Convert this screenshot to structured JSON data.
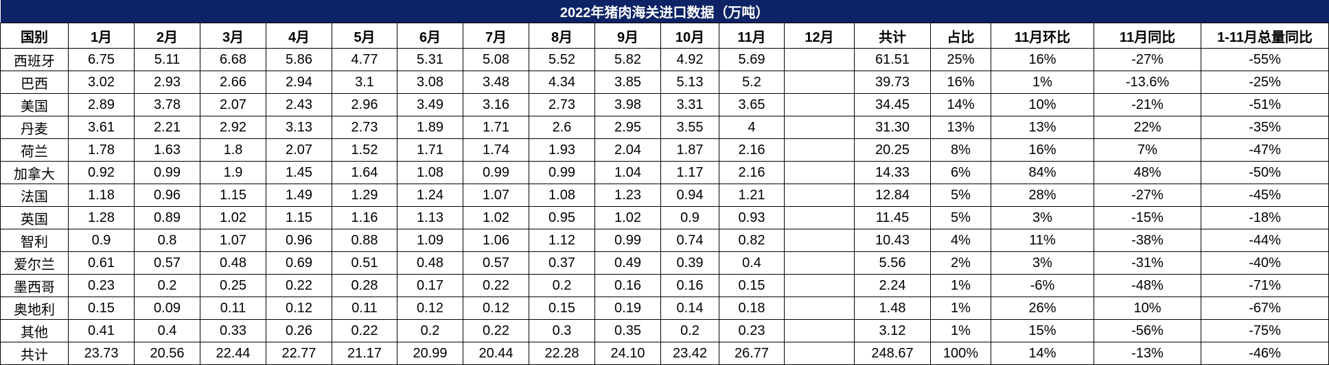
{
  "title": "2022年猪肉海关进口数据（万吨）",
  "colors": {
    "title_bg": "#0D2365",
    "title_text": "#FFFFFF",
    "grid_border": "#000000",
    "cell_bg": "#FFFFFF",
    "cell_text": "#000000"
  },
  "chart_data": {
    "type": "table",
    "title": "2022年猪肉海关进口数据（万吨）",
    "columns": [
      "国别",
      "1月",
      "2月",
      "3月",
      "4月",
      "5月",
      "6月",
      "7月",
      "8月",
      "9月",
      "10月",
      "11月",
      "12月",
      "共计",
      "占比",
      "11月环比",
      "11月同比",
      "1-11月总量同比"
    ],
    "rows": [
      {
        "name": "西班牙",
        "values": [
          "6.75",
          "5.11",
          "6.68",
          "5.86",
          "4.77",
          "5.31",
          "5.08",
          "5.52",
          "5.82",
          "4.92",
          "5.69",
          "",
          "61.51",
          "25%",
          "16%",
          "-27%",
          "-55%"
        ]
      },
      {
        "name": "巴西",
        "values": [
          "3.02",
          "2.93",
          "2.66",
          "2.94",
          "3.1",
          "3.08",
          "3.48",
          "4.34",
          "3.85",
          "5.13",
          "5.2",
          "",
          "39.73",
          "16%",
          "1%",
          "-13.6%",
          "-25%"
        ]
      },
      {
        "name": "美国",
        "values": [
          "2.89",
          "3.78",
          "2.07",
          "2.43",
          "2.96",
          "3.49",
          "3.16",
          "2.73",
          "3.98",
          "3.31",
          "3.65",
          "",
          "34.45",
          "14%",
          "10%",
          "-21%",
          "-51%"
        ]
      },
      {
        "name": "丹麦",
        "values": [
          "3.61",
          "2.21",
          "2.92",
          "3.13",
          "2.73",
          "1.89",
          "1.71",
          "2.6",
          "2.95",
          "3.55",
          "4",
          "",
          "31.30",
          "13%",
          "13%",
          "22%",
          "-35%"
        ]
      },
      {
        "name": "荷兰",
        "values": [
          "1.78",
          "1.63",
          "1.8",
          "2.07",
          "1.52",
          "1.71",
          "1.74",
          "1.93",
          "2.04",
          "1.87",
          "2.16",
          "",
          "20.25",
          "8%",
          "16%",
          "7%",
          "-47%"
        ]
      },
      {
        "name": "加拿大",
        "values": [
          "0.92",
          "0.99",
          "1.9",
          "1.45",
          "1.64",
          "1.08",
          "0.99",
          "0.99",
          "1.04",
          "1.17",
          "2.16",
          "",
          "14.33",
          "6%",
          "84%",
          "48%",
          "-50%"
        ]
      },
      {
        "name": "法国",
        "values": [
          "1.18",
          "0.96",
          "1.15",
          "1.49",
          "1.29",
          "1.24",
          "1.07",
          "1.08",
          "1.23",
          "0.94",
          "1.21",
          "",
          "12.84",
          "5%",
          "28%",
          "-27%",
          "-45%"
        ]
      },
      {
        "name": "英国",
        "values": [
          "1.28",
          "0.89",
          "1.02",
          "1.15",
          "1.16",
          "1.13",
          "1.02",
          "0.95",
          "1.02",
          "0.9",
          "0.93",
          "",
          "11.45",
          "5%",
          "3%",
          "-15%",
          "-18%"
        ]
      },
      {
        "name": "智利",
        "values": [
          "0.9",
          "0.8",
          "1.07",
          "0.96",
          "0.88",
          "1.09",
          "1.06",
          "1.12",
          "0.99",
          "0.74",
          "0.82",
          "",
          "10.43",
          "4%",
          "11%",
          "-38%",
          "-44%"
        ]
      },
      {
        "name": "爱尔兰",
        "values": [
          "0.61",
          "0.57",
          "0.48",
          "0.69",
          "0.51",
          "0.48",
          "0.57",
          "0.37",
          "0.49",
          "0.39",
          "0.4",
          "",
          "5.56",
          "2%",
          "3%",
          "-31%",
          "-40%"
        ]
      },
      {
        "name": "墨西哥",
        "values": [
          "0.23",
          "0.2",
          "0.25",
          "0.22",
          "0.28",
          "0.17",
          "0.22",
          "0.2",
          "0.16",
          "0.16",
          "0.15",
          "",
          "2.24",
          "1%",
          "-6%",
          "-48%",
          "-71%"
        ]
      },
      {
        "name": "奥地利",
        "values": [
          "0.15",
          "0.09",
          "0.11",
          "0.12",
          "0.11",
          "0.12",
          "0.12",
          "0.15",
          "0.19",
          "0.14",
          "0.18",
          "",
          "1.48",
          "1%",
          "26%",
          "10%",
          "-67%"
        ]
      },
      {
        "name": "其他",
        "values": [
          "0.41",
          "0.4",
          "0.33",
          "0.26",
          "0.22",
          "0.2",
          "0.22",
          "0.3",
          "0.35",
          "0.2",
          "0.23",
          "",
          "3.12",
          "1%",
          "15%",
          "-56%",
          "-75%"
        ]
      },
      {
        "name": "共计",
        "values": [
          "23.73",
          "20.56",
          "22.44",
          "22.77",
          "21.17",
          "20.99",
          "20.44",
          "22.28",
          "24.10",
          "23.42",
          "26.77",
          "",
          "248.67",
          "100%",
          "14%",
          "-13%",
          "-46%"
        ]
      }
    ]
  }
}
